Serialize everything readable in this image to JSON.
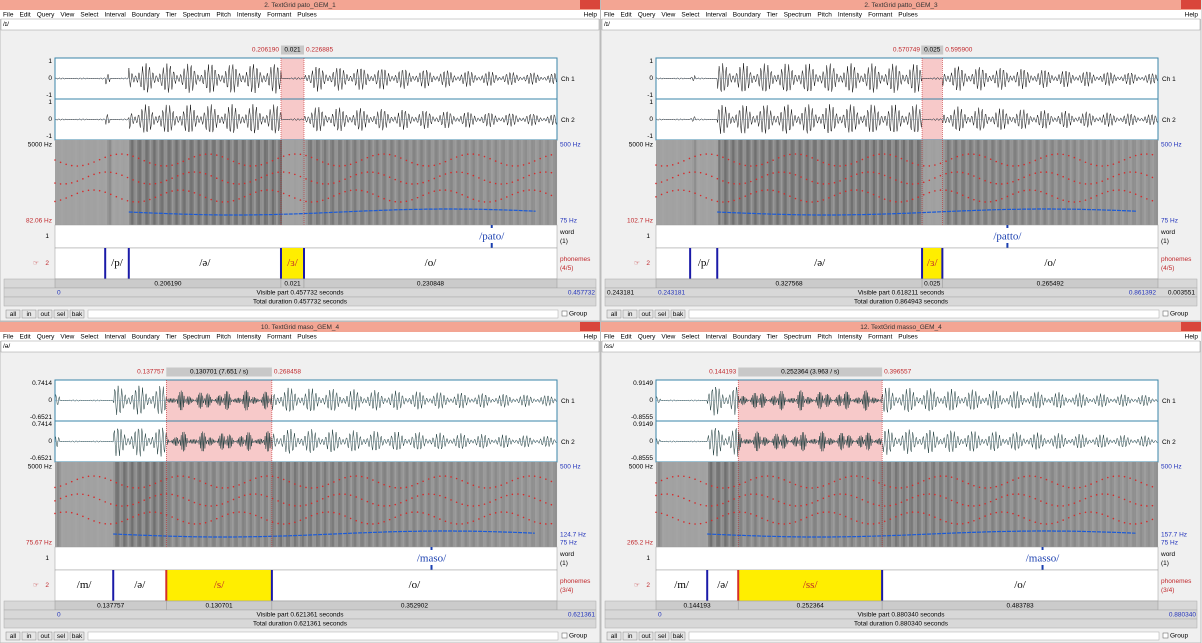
{
  "menu": [
    "File",
    "Edit",
    "Query",
    "View",
    "Select",
    "Interval",
    "Boundary",
    "Tier",
    "Spectrum",
    "Pitch",
    "Intensity",
    "Formant",
    "Pulses"
  ],
  "help": "Help",
  "channels": [
    "Ch 1",
    "Ch 2"
  ],
  "buttons": [
    "all",
    "in",
    "out",
    "sel",
    "bak"
  ],
  "group": "Group",
  "windows": [
    {
      "title": "2. TextGrid pato_GEM_1",
      "text": "/ɪ/",
      "selection": [
        "0.206190",
        "0.021",
        "0.226885"
      ],
      "amplitude": [
        "1",
        "0",
        "-1"
      ],
      "spectrogram_left": [
        "5000 Hz",
        "82.06 Hz"
      ],
      "spectrogram_right": [
        "500 Hz",
        "75 Hz"
      ],
      "tiers": [
        {
          "number": "1",
          "name": "word",
          "count": "(1)",
          "intervals": [
            "/pato/"
          ]
        },
        {
          "number": "2",
          "name": "phonemes",
          "count": "(4/5)",
          "intervals": [
            "/p/",
            "/ə/",
            "/ɜ/",
            "/o/"
          ]
        }
      ],
      "durations": [
        "0.206190",
        "0.021",
        "0.230848"
      ],
      "range": [
        "0",
        "0.457732"
      ],
      "visible": "Visible part 0.457732 seconds",
      "total": "Total duration 0.457732 seconds"
    },
    {
      "title": "2. TextGrid patto_GEM_3",
      "text": "/ɪ/",
      "selection": [
        "0.570749",
        "0.025",
        "0.595900"
      ],
      "amplitude": [
        "1",
        "0",
        "-1"
      ],
      "spectrogram_left": [
        "5000 Hz",
        "102.7 Hz"
      ],
      "spectrogram_right": [
        "500 Hz",
        "75 Hz"
      ],
      "tiers": [
        {
          "number": "1",
          "name": "word",
          "count": "(1)",
          "intervals": [
            "/patto/"
          ]
        },
        {
          "number": "2",
          "name": "phonemes",
          "count": "(4/5)",
          "intervals": [
            "/p/",
            "/ə/",
            "/ɜ/",
            "/o/"
          ]
        }
      ],
      "durations": [
        "0.327568",
        "0.025",
        "0.265492"
      ],
      "range": [
        "0.243181",
        "0.861392"
      ],
      "before": "0.243181",
      "after": "0.003551",
      "visible": "Visible part 0.618211 seconds",
      "total": "Total duration 0.864943 seconds"
    },
    {
      "title": "10. TextGrid maso_GEM_4",
      "text": "/ə/",
      "selection": [
        "0.137757",
        "0.130701 (7.651 / s)",
        "0.268458"
      ],
      "amplitude": [
        "0.7414",
        "0",
        "-0.6521"
      ],
      "spectrogram_left": [
        "5000 Hz",
        "75.67 Hz"
      ],
      "spectrogram_right": [
        "500 Hz",
        "124.7 Hz",
        "75 Hz"
      ],
      "tiers": [
        {
          "number": "1",
          "name": "word",
          "count": "(1)",
          "intervals": [
            "/maso/"
          ]
        },
        {
          "number": "2",
          "name": "phonemes",
          "count": "(3/4)",
          "intervals": [
            "/m/",
            "/ə/",
            "/s/",
            "/o/"
          ]
        }
      ],
      "durations": [
        "0.137757",
        "0.130701",
        "0.352902"
      ],
      "range": [
        "0",
        "0.621361"
      ],
      "visible": "Visible part 0.621361 seconds",
      "total": "Total duration 0.621361 seconds"
    },
    {
      "title": "12. TextGrid masso_GEM_4",
      "text": "/ss/",
      "selection": [
        "0.144193",
        "0.252364 (3.963 / s)",
        "0.396557"
      ],
      "amplitude": [
        "0.9149",
        "0",
        "-0.8555"
      ],
      "spectrogram_left": [
        "5000 Hz",
        "265.2 Hz"
      ],
      "spectrogram_right": [
        "500 Hz",
        "157.7 Hz",
        "75 Hz"
      ],
      "tiers": [
        {
          "number": "1",
          "name": "word",
          "count": "(1)",
          "intervals": [
            "/masso/"
          ]
        },
        {
          "number": "2",
          "name": "phonemes",
          "count": "(3/4)",
          "intervals": [
            "/m/",
            "/ə/",
            "/ss/",
            "/o/"
          ]
        }
      ],
      "durations": [
        "0.144193",
        "0.252364",
        "0.483783"
      ],
      "range": [
        "0",
        "0.880340"
      ],
      "visible": "Visible part 0.880340 seconds",
      "total": "Total duration 0.880340 seconds"
    }
  ]
}
